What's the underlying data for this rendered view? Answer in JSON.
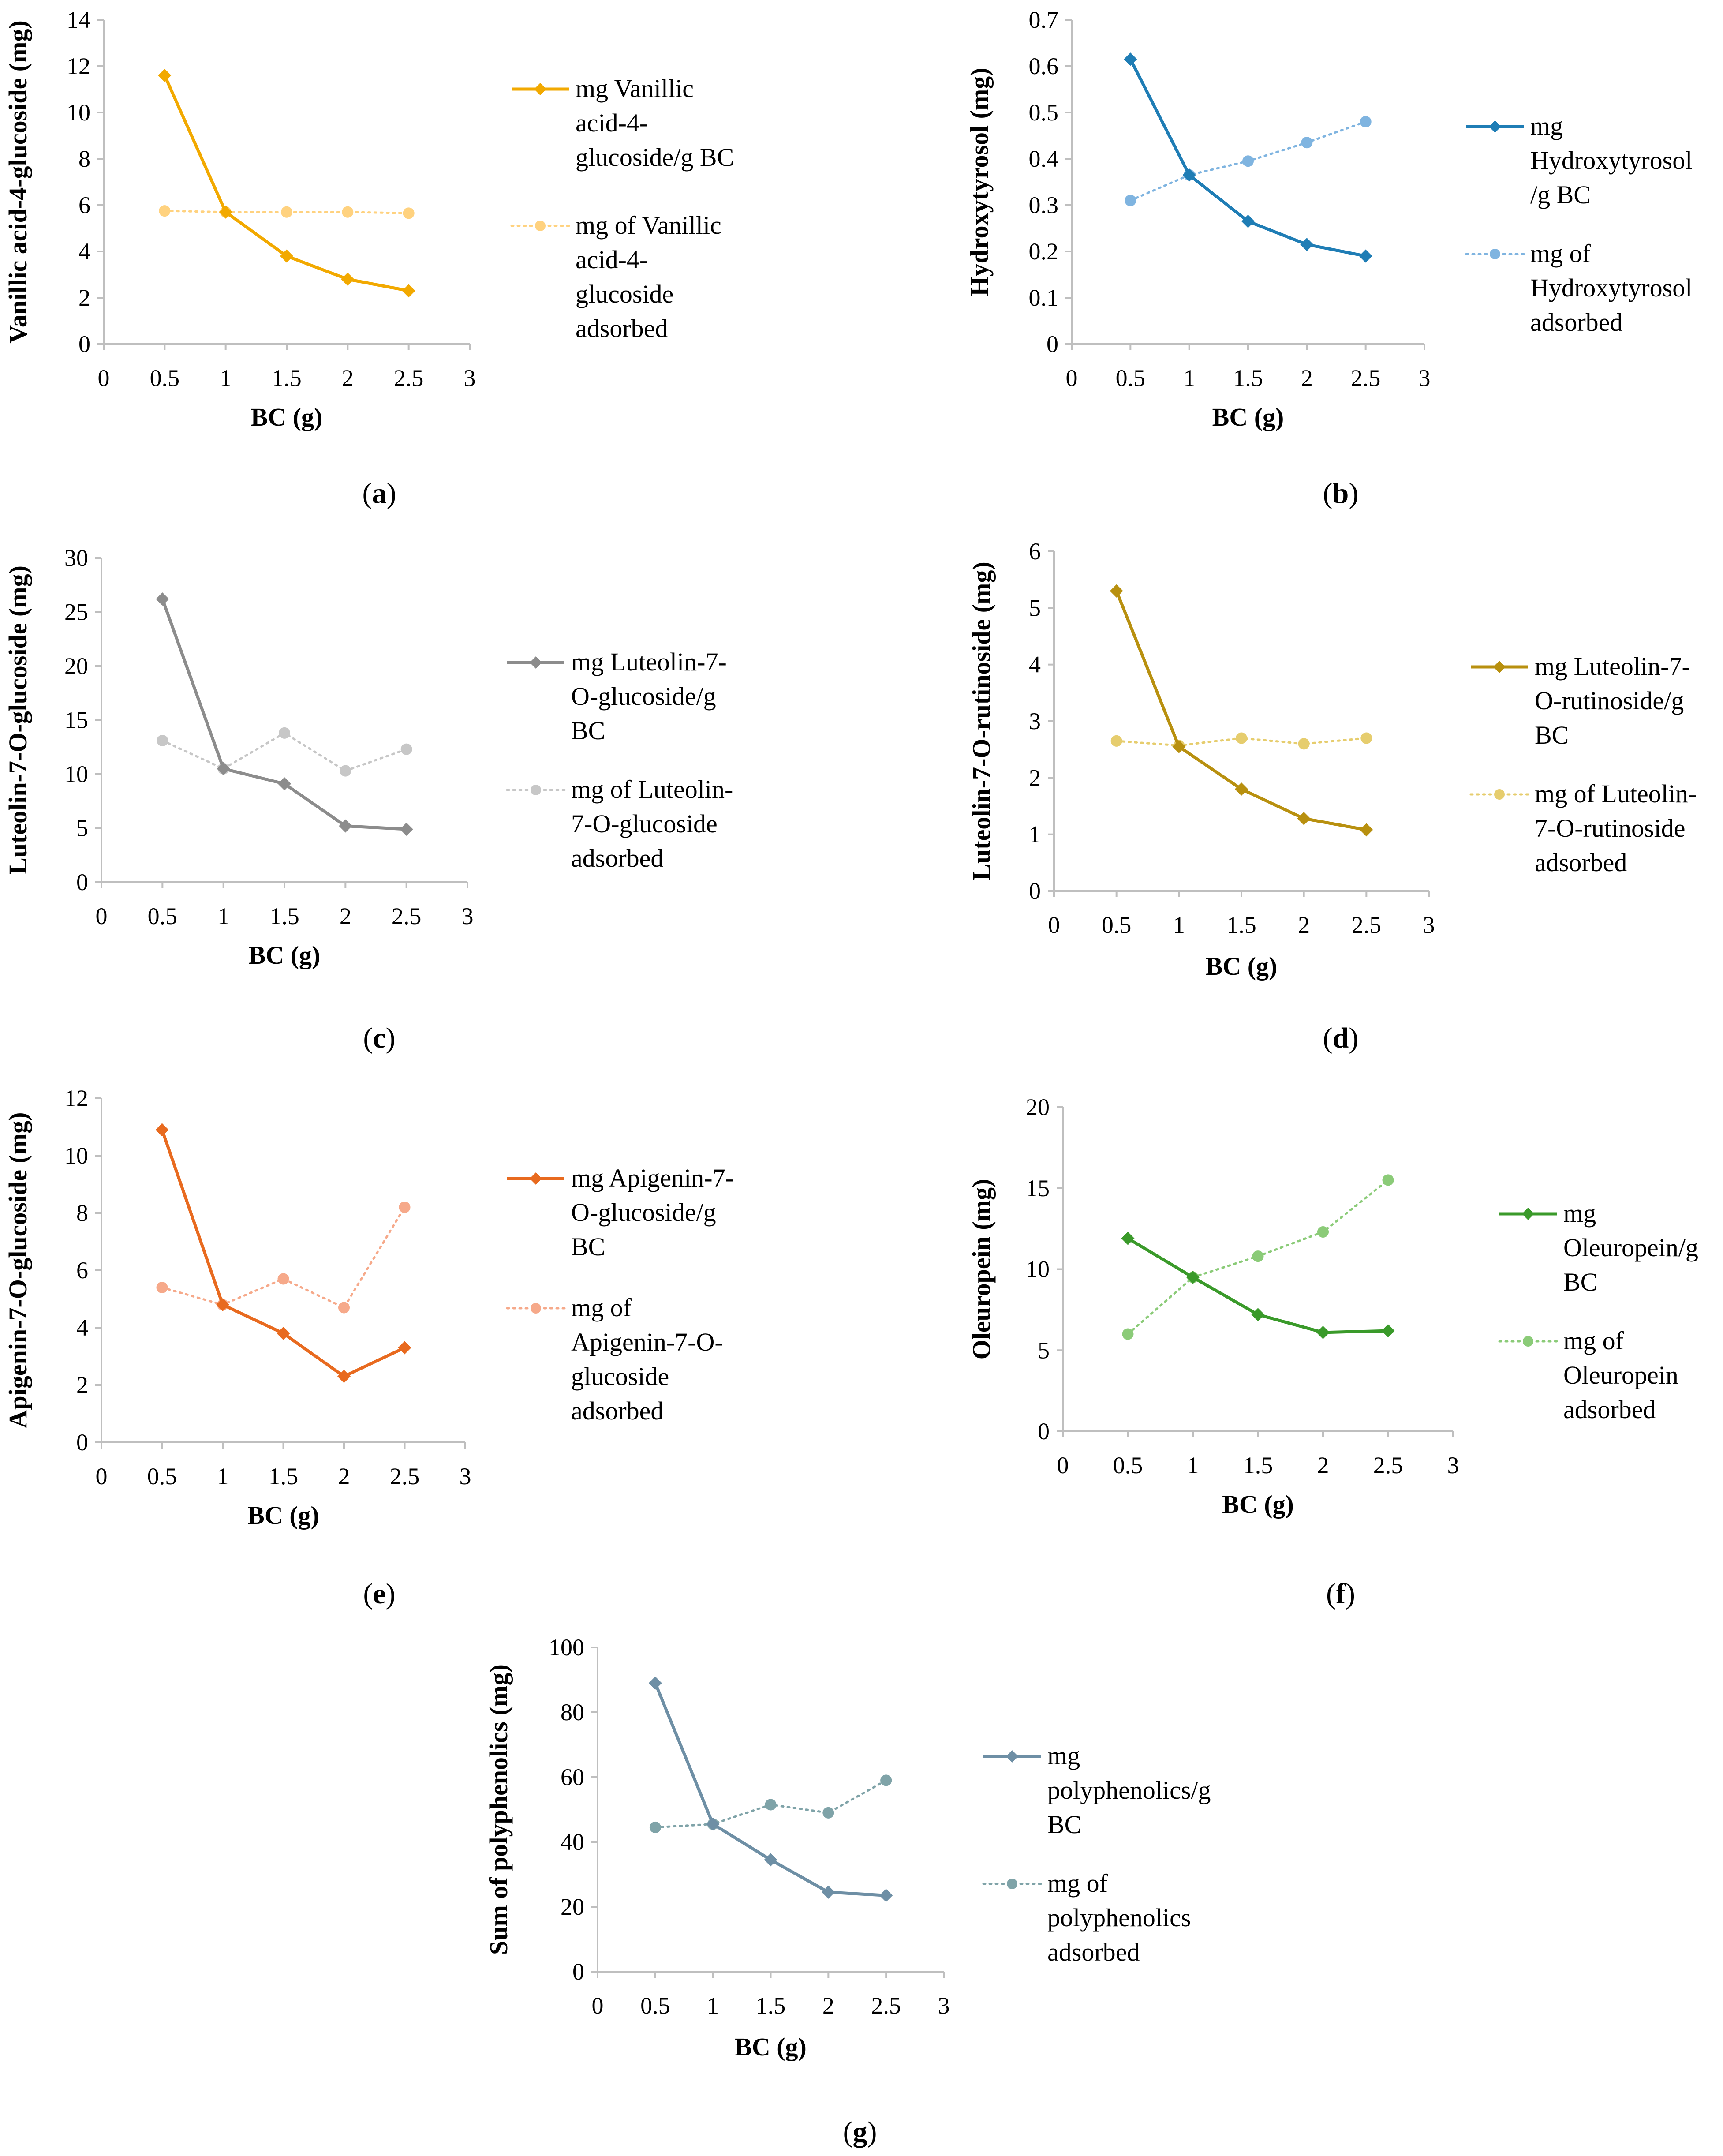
{
  "colors": {
    "vanillic": "#F2A900",
    "vanillic_ads": "#FFD27F",
    "hydroxy": "#1F7DB5",
    "hydroxy_ads": "#7FB4E0",
    "luteolin_glu": "#8C8C8C",
    "luteolin_glu_ads": "#C7C7C7",
    "luteolin_rut": "#B8900F",
    "luteolin_rut_ads": "#E6CD6E",
    "apigenin": "#E86A1F",
    "apigenin_ads": "#F6A98A",
    "oleuropein": "#3A9A2A",
    "oleuropein_ads": "#8BCB78",
    "sum": "#6E8FA5",
    "sum_ads": "#7FA3A8",
    "axis": "#BFBFBF"
  },
  "chart_data": [
    {
      "panel_label": "a",
      "type": "line",
      "xlabel": "BC (g)",
      "ylabel": "Vanillic acid-4-glucoside (mg)",
      "xlim": [
        0,
        3
      ],
      "xticks": [
        0,
        0.5,
        1,
        1.5,
        2,
        2.5,
        3
      ],
      "ylim": [
        0,
        14
      ],
      "yticks": [
        0,
        2,
        4,
        6,
        8,
        10,
        12,
        14
      ],
      "x": [
        0.5,
        1,
        1.5,
        2,
        2.5
      ],
      "series": [
        {
          "name": "mg Vanillic acid-4-glucoside/g BC",
          "legend_lines": [
            "mg Vanillic",
            "acid-4-",
            "glucoside/g BC"
          ],
          "values": [
            11.6,
            5.7,
            3.8,
            2.8,
            2.3
          ],
          "style": "solid",
          "marker": "diamond",
          "color_key": "vanillic"
        },
        {
          "name": "mg of Vanillic acid-4-glucoside adsorbed",
          "legend_lines": [
            "mg of Vanillic",
            "acid-4-",
            "glucoside",
            "adsorbed"
          ],
          "values": [
            5.75,
            5.7,
            5.7,
            5.7,
            5.65
          ],
          "style": "dotted",
          "marker": "circle",
          "color_key": "vanillic_ads"
        }
      ]
    },
    {
      "panel_label": "b",
      "type": "line",
      "xlabel": "BC (g)",
      "ylabel": "Hydroxytyrosol (mg)",
      "xlim": [
        0,
        3
      ],
      "xticks": [
        0,
        0.5,
        1,
        1.5,
        2,
        2.5,
        3
      ],
      "ylim": [
        0,
        0.7
      ],
      "yticks": [
        0,
        0.1,
        0.2,
        0.3,
        0.4,
        0.5,
        0.6,
        0.7
      ],
      "x": [
        0.5,
        1,
        1.5,
        2,
        2.5
      ],
      "series": [
        {
          "name": "mg Hydroxytyrosol/g BC",
          "legend_lines": [
            "mg",
            "Hydroxytyrosol",
            "/g BC"
          ],
          "values": [
            0.615,
            0.365,
            0.265,
            0.215,
            0.19
          ],
          "style": "solid",
          "marker": "diamond",
          "color_key": "hydroxy"
        },
        {
          "name": "mg of Hydroxytyrosol adsorbed",
          "legend_lines": [
            "mg of",
            "Hydroxytyrosol",
            "adsorbed"
          ],
          "values": [
            0.31,
            0.365,
            0.395,
            0.435,
            0.48
          ],
          "style": "dotted",
          "marker": "circle",
          "color_key": "hydroxy_ads"
        }
      ]
    },
    {
      "panel_label": "c",
      "type": "line",
      "xlabel": "BC (g)",
      "ylabel": "Luteolin-7-O-glucoside (mg)",
      "xlim": [
        0,
        3
      ],
      "xticks": [
        0,
        0.5,
        1,
        1.5,
        2,
        2.5,
        3
      ],
      "ylim": [
        0,
        30
      ],
      "yticks": [
        0,
        5,
        10,
        15,
        20,
        25,
        30
      ],
      "x": [
        0.5,
        1,
        1.5,
        2,
        2.5
      ],
      "series": [
        {
          "name": "mg Luteolin-7-O-glucoside/g BC",
          "legend_lines": [
            "mg Luteolin-7-",
            "O-glucoside/g",
            "BC"
          ],
          "values": [
            26.2,
            10.5,
            9.1,
            5.2,
            4.9
          ],
          "style": "solid",
          "marker": "diamond",
          "color_key": "luteolin_glu"
        },
        {
          "name": "mg of Luteolin-7-O-glucoside adsorbed",
          "legend_lines": [
            "mg of Luteolin-",
            "7-O-glucoside",
            "adsorbed"
          ],
          "values": [
            13.1,
            10.5,
            13.8,
            10.3,
            12.3
          ],
          "style": "dotted",
          "marker": "circle",
          "color_key": "luteolin_glu_ads"
        }
      ]
    },
    {
      "panel_label": "d",
      "type": "line",
      "xlabel": "BC (g)",
      "ylabel": "Luteolin-7-O-rutinoside (mg)",
      "xlim": [
        0,
        3
      ],
      "xticks": [
        0,
        0.5,
        1,
        1.5,
        2,
        2.5,
        3
      ],
      "ylim": [
        0,
        6
      ],
      "yticks": [
        0,
        1,
        2,
        3,
        4,
        5,
        6
      ],
      "x": [
        0.5,
        1,
        1.5,
        2,
        2.5
      ],
      "series": [
        {
          "name": "mg Luteolin-7-O-rutinoside/g BC",
          "legend_lines": [
            "mg Luteolin-7-",
            "O-rutinoside/g",
            "BC"
          ],
          "values": [
            5.3,
            2.55,
            1.8,
            1.28,
            1.08
          ],
          "style": "solid",
          "marker": "diamond",
          "color_key": "luteolin_rut"
        },
        {
          "name": "mg of Luteolin-7-O-rutinoside adsorbed",
          "legend_lines": [
            "mg of Luteolin-",
            "7-O-rutinoside",
            "adsorbed"
          ],
          "values": [
            2.65,
            2.57,
            2.7,
            2.6,
            2.7
          ],
          "style": "dotted",
          "marker": "circle",
          "color_key": "luteolin_rut_ads"
        }
      ]
    },
    {
      "panel_label": "e",
      "type": "line",
      "xlabel": "BC (g)",
      "ylabel": "Apigenin-7-O-glucoside (mg)",
      "xlim": [
        0,
        3
      ],
      "xticks": [
        0,
        0.5,
        1,
        1.5,
        2,
        2.5,
        3
      ],
      "ylim": [
        0,
        12
      ],
      "yticks": [
        0,
        2,
        4,
        6,
        8,
        10,
        12
      ],
      "x": [
        0.5,
        1,
        1.5,
        2,
        2.5
      ],
      "series": [
        {
          "name": "mg Apigenin-7-O-glucoside/g BC",
          "legend_lines": [
            "mg Apigenin-7-",
            "O-glucoside/g",
            "BC"
          ],
          "values": [
            10.9,
            4.8,
            3.8,
            2.3,
            3.3
          ],
          "style": "solid",
          "marker": "diamond",
          "color_key": "apigenin"
        },
        {
          "name": "mg of Apigenin-7-O-glucoside adsorbed",
          "legend_lines": [
            "mg of",
            "Apigenin-7-O-",
            "glucoside",
            "adsorbed"
          ],
          "values": [
            5.4,
            4.8,
            5.7,
            4.7,
            8.2
          ],
          "style": "dotted",
          "marker": "circle",
          "color_key": "apigenin_ads"
        }
      ]
    },
    {
      "panel_label": "f",
      "type": "line",
      "xlabel": "BC (g)",
      "ylabel": "Oleuropein  (mg)",
      "xlim": [
        0,
        3
      ],
      "xticks": [
        0,
        0.5,
        1,
        1.5,
        2,
        2.5,
        3
      ],
      "ylim": [
        0,
        20
      ],
      "yticks": [
        0,
        5,
        10,
        15,
        20
      ],
      "x": [
        0.5,
        1,
        1.5,
        2,
        2.5
      ],
      "series": [
        {
          "name": "mg Oleuropein/g BC",
          "legend_lines": [
            "mg",
            "Oleuropein/g",
            "BC"
          ],
          "values": [
            11.9,
            9.5,
            7.2,
            6.1,
            6.2
          ],
          "style": "solid",
          "marker": "diamond",
          "color_key": "oleuropein"
        },
        {
          "name": "mg of Oleuropein adsorbed",
          "legend_lines": [
            "mg of",
            "Oleuropein",
            "adsorbed"
          ],
          "values": [
            6.0,
            9.5,
            10.8,
            12.3,
            15.5
          ],
          "style": "dotted",
          "marker": "circle",
          "color_key": "oleuropein_ads"
        }
      ]
    },
    {
      "panel_label": "g",
      "type": "line",
      "xlabel": "BC (g)",
      "ylabel": "Sum of polyphenolics  (mg)",
      "xlim": [
        0,
        3
      ],
      "xticks": [
        0,
        0.5,
        1,
        1.5,
        2,
        2.5,
        3
      ],
      "ylim": [
        0,
        100
      ],
      "yticks": [
        0,
        20,
        40,
        60,
        80,
        100
      ],
      "x": [
        0.5,
        1,
        1.5,
        2,
        2.5
      ],
      "series": [
        {
          "name": "mg polyphenolics/g BC",
          "legend_lines": [
            "mg",
            "polyphenolics/g",
            "BC"
          ],
          "values": [
            89,
            45.5,
            34.5,
            24.5,
            23.5
          ],
          "style": "solid",
          "marker": "diamond",
          "color_key": "sum"
        },
        {
          "name": "mg of polyphenolics adsorbed",
          "legend_lines": [
            "mg of",
            "polyphenolics",
            "adsorbed"
          ],
          "values": [
            44.5,
            45.5,
            51.5,
            49,
            59
          ],
          "style": "dotted",
          "marker": "circle",
          "color_key": "sum_ads"
        }
      ]
    }
  ]
}
